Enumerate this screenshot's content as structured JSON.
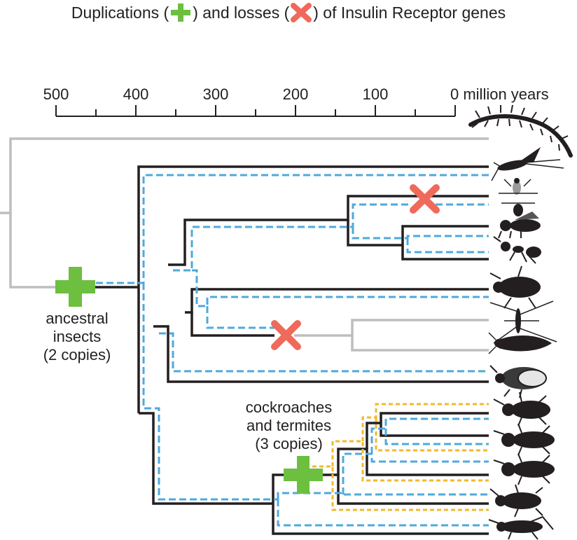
{
  "title": {
    "part1": "Duplications (",
    "part2": ") and losses (",
    "part3": ") of Insulin Receptor genes",
    "duplication_icon": "green-plus-icon",
    "loss_icon": "red-cross-icon"
  },
  "axis": {
    "ticks": [
      "500",
      "400",
      "300",
      "200",
      "100",
      "0 million years"
    ]
  },
  "labels": {
    "ancestral_line1": "ancestral",
    "ancestral_line2": "insects",
    "ancestral_line3": "(2 copies)",
    "cockroach_line1": "cockroaches",
    "cockroach_line2": "and termites",
    "cockroach_line3": "(3 copies)"
  },
  "colors": {
    "tree_black": "#231f20",
    "tree_gray": "#bcbec0",
    "copy_blue": "#4fa9db",
    "copy_yellow": "#f2b92e",
    "duplication_green": "#6cbf3f",
    "loss_red": "#ef6a5a"
  },
  "taxa_icons": [
    "centipede-icon",
    "mayfly-icon",
    "wasp-icon",
    "bee-icon",
    "ant-icon",
    "beetle-icon",
    "mosquito-icon",
    "moth-icon",
    "bug-icon",
    "cockroach-icon",
    "termite-icon",
    "termite-icon",
    "termite-icon",
    "cockroach-icon",
    "grasshopper-icon"
  ]
}
